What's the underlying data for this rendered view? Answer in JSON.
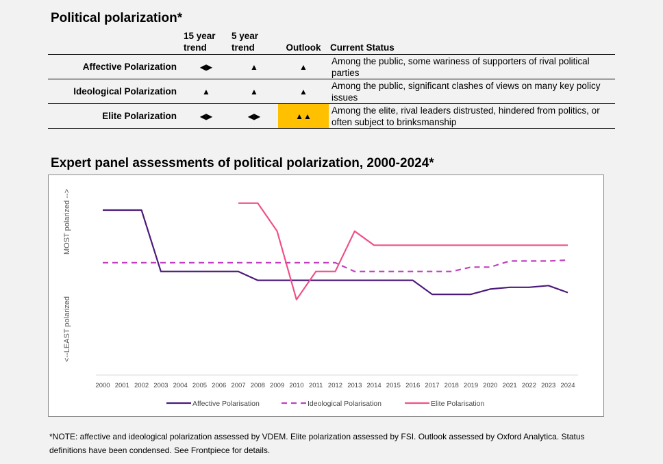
{
  "title": "Political polarization*",
  "table": {
    "headers": [
      "",
      "15 year trend",
      "5 year trend",
      "Outlook",
      "Current Status"
    ],
    "rows": [
      {
        "name": "Affective Polarization",
        "trend15": "◀▶",
        "trend5": "▲",
        "outlook": "▲",
        "status": "Among the public, some wariness of supporters of rival political parties"
      },
      {
        "name": "Ideological Polarization",
        "trend15": "▲",
        "trend5": "▲",
        "outlook": "▲",
        "status": "Among the public, significant clashes of views on many key policy issues"
      },
      {
        "name": "Elite Polarization",
        "trend15": "◀▶",
        "trend5": "◀▶",
        "outlook": "▲▲",
        "status": "Among the elite, rival leaders distrusted, hindered from politics, or often subject to brinksmanship",
        "outlook_highlight": "#ffc000"
      }
    ]
  },
  "chart_title": "Expert panel assessments of political polarization, 2000-2024*",
  "chart_data": {
    "type": "line",
    "x": [
      2000,
      2001,
      2002,
      2003,
      2004,
      2005,
      2006,
      2007,
      2008,
      2009,
      2010,
      2011,
      2012,
      2013,
      2014,
      2015,
      2016,
      2017,
      2018,
      2019,
      2020,
      2021,
      2022,
      2023,
      2024
    ],
    "ylabel_top": "MOST polarized -->",
    "ylabel_bottom": "<--LEAST polarized",
    "series": [
      {
        "name": "Affective Polarisation",
        "color": "#4b1a7a",
        "dash": "solid",
        "values": [
          6.9,
          6.9,
          6.9,
          3.4,
          3.4,
          3.4,
          3.4,
          3.4,
          2.9,
          2.9,
          2.9,
          2.9,
          2.9,
          2.9,
          2.9,
          2.9,
          2.9,
          2.1,
          2.1,
          2.1,
          2.4,
          2.5,
          2.5,
          2.6,
          2.2
        ]
      },
      {
        "name": "Ideological Polarisation",
        "color": "#c13fc0",
        "dash": "dashed",
        "values": [
          3.9,
          3.9,
          3.9,
          3.9,
          3.9,
          3.9,
          3.9,
          3.9,
          3.9,
          3.9,
          3.9,
          3.9,
          3.9,
          3.4,
          3.4,
          3.4,
          3.4,
          3.4,
          3.4,
          3.65,
          3.65,
          4.0,
          4.0,
          4.0,
          4.05
        ]
      },
      {
        "name": "Elite Polarisation",
        "color": "#f0508a",
        "dash": "solid",
        "values": [
          null,
          null,
          null,
          null,
          null,
          null,
          null,
          7.3,
          7.3,
          5.7,
          1.8,
          3.4,
          3.4,
          5.7,
          4.9,
          4.9,
          4.9,
          4.9,
          4.9,
          4.9,
          4.9,
          4.9,
          4.9,
          4.9,
          4.9
        ]
      }
    ],
    "ylim": [
      -2.5,
      8.5
    ]
  },
  "note": "*NOTE: affective and ideological polarization assessed by VDEM. Elite polarization assessed by FSI. Outlook assessed by Oxford Analytica. Status definitions have been condensed. See Frontpiece for details."
}
